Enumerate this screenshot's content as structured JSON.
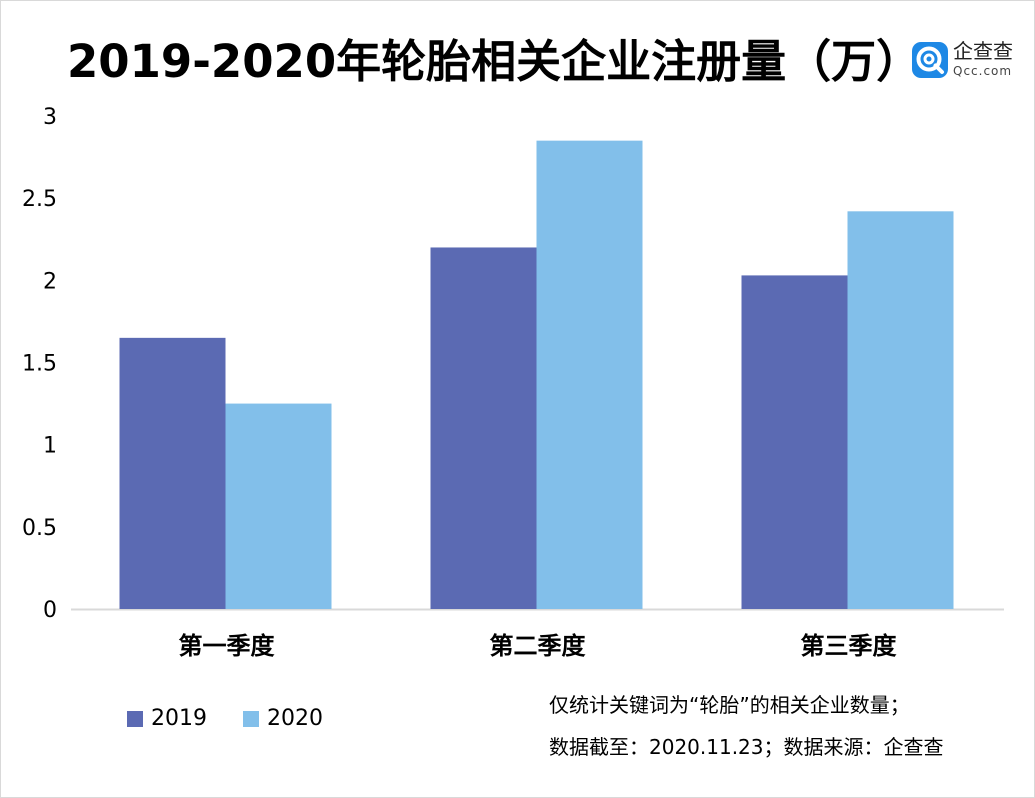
{
  "chart_data": {
    "type": "bar",
    "title": "2019-2020年轮胎相关企业注册量（万）",
    "categories": [
      "第一季度",
      "第二季度",
      "第三季度"
    ],
    "series": [
      {
        "name": "2019",
        "color": "#5b6ab3",
        "values": [
          1.65,
          2.2,
          2.03
        ]
      },
      {
        "name": "2020",
        "color": "#82bfea",
        "values": [
          1.25,
          2.85,
          2.42
        ]
      }
    ],
    "yticks": [
      "0",
      "0.5",
      "1",
      "1.5",
      "2",
      "2.5",
      "3"
    ],
    "ylim": [
      0,
      3
    ],
    "grid": false,
    "legend_position": "bottom-left"
  },
  "brand": {
    "name": "企查查",
    "domain": "Qcc.com",
    "logo_icon": "qcc-logo-icon",
    "logo_color": "#1e88e5"
  },
  "notes": [
    "仅统计关键词为“轮胎”的相关企业数量；",
    "数据截至：2020.11.23；数据来源：企查查"
  ]
}
